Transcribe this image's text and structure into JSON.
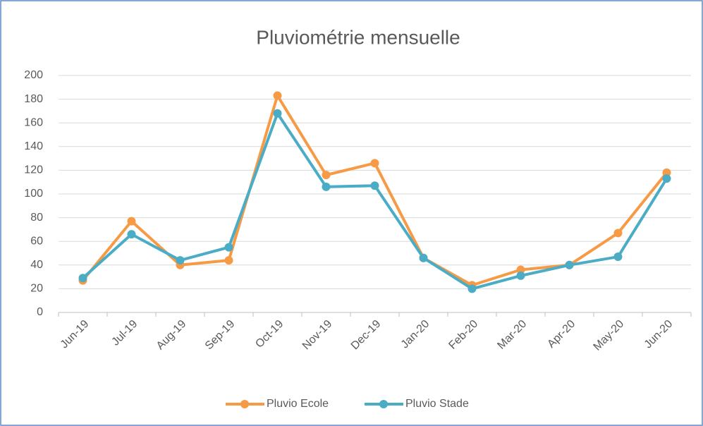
{
  "chart_data": {
    "type": "line",
    "title": "Pluviométrie mensuelle",
    "categories": [
      "Jun-19",
      "Jul-19",
      "Aug-19",
      "Sep-19",
      "Oct-19",
      "Nov-19",
      "Dec-19",
      "Jan-20",
      "Feb-20",
      "Mar-20",
      "Apr-20",
      "May-20",
      "Jun-20"
    ],
    "series": [
      {
        "name": "Pluvio Ecole",
        "color": "#f79a46",
        "values": [
          27,
          77,
          40,
          44,
          183,
          116,
          126,
          46,
          23,
          36,
          40,
          67,
          118
        ]
      },
      {
        "name": "Pluvio Stade",
        "color": "#4bacc6",
        "values": [
          29,
          66,
          44,
          55,
          168,
          106,
          107,
          46,
          20,
          31,
          40,
          47,
          113
        ]
      }
    ],
    "ylim": [
      0,
      200
    ],
    "yticks": [
      0,
      20,
      40,
      60,
      80,
      100,
      120,
      140,
      160,
      180,
      200
    ],
    "grid": true,
    "legend": "bottom"
  }
}
